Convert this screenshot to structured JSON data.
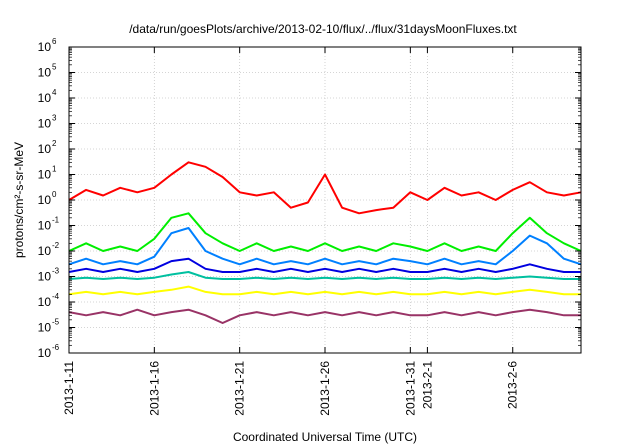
{
  "chart_data": {
    "type": "line",
    "title": "/data/run/goesPlots/archive/2013-02-10/flux/../flux/31daysMoonFluxes.txt",
    "xlabel": "Coordinated Universal Time (UTC)",
    "ylabel": "protons/cm²-s-sr-MeV",
    "yscale": "log",
    "ylim": [
      1e-06,
      1000000.0
    ],
    "xlim": [
      "2013-01-11",
      "2013-02-10"
    ],
    "grid": true,
    "y_ticks": [
      {
        "value": 1e-06,
        "base": "10",
        "exp": "-6"
      },
      {
        "value": 1e-05,
        "base": "10",
        "exp": "-5"
      },
      {
        "value": 0.0001,
        "base": "10",
        "exp": "-4"
      },
      {
        "value": 0.001,
        "base": "10",
        "exp": "-3"
      },
      {
        "value": 0.01,
        "base": "10",
        "exp": "-2"
      },
      {
        "value": 0.1,
        "base": "10",
        "exp": "-1"
      },
      {
        "value": 1,
        "base": "10",
        "exp": "0"
      },
      {
        "value": 10.0,
        "base": "10",
        "exp": "1"
      },
      {
        "value": 100.0,
        "base": "10",
        "exp": "2"
      },
      {
        "value": 1000.0,
        "base": "10",
        "exp": "3"
      },
      {
        "value": 10000.0,
        "base": "10",
        "exp": "4"
      },
      {
        "value": 100000.0,
        "base": "10",
        "exp": "5"
      },
      {
        "value": 1000000.0,
        "base": "10",
        "exp": "6"
      }
    ],
    "x_ticks": [
      {
        "date": "2013-01-11",
        "label": "2013-1-11"
      },
      {
        "date": "2013-01-16",
        "label": "2013-1-16"
      },
      {
        "date": "2013-01-21",
        "label": "2013-1-21"
      },
      {
        "date": "2013-01-26",
        "label": "2013-1-26"
      },
      {
        "date": "2013-01-31",
        "label": "2013-1-31"
      },
      {
        "date": "2013-02-01",
        "label": "2013-2-1"
      },
      {
        "date": "2013-02-06",
        "label": "2013-2-6"
      }
    ],
    "series": [
      {
        "color": "#ff0000",
        "x": [
          "2013-01-11",
          "2013-01-12",
          "2013-01-13",
          "2013-01-14",
          "2013-01-15",
          "2013-01-16",
          "2013-01-17",
          "2013-01-18",
          "2013-01-19",
          "2013-01-20",
          "2013-01-21",
          "2013-01-22",
          "2013-01-23",
          "2013-01-24",
          "2013-01-25",
          "2013-01-26",
          "2013-01-27",
          "2013-01-28",
          "2013-01-29",
          "2013-01-30",
          "2013-01-31",
          "2013-02-01",
          "2013-02-02",
          "2013-02-03",
          "2013-02-04",
          "2013-02-05",
          "2013-02-06",
          "2013-02-07",
          "2013-02-08",
          "2013-02-09",
          "2013-02-10"
        ],
        "values": [
          1.0,
          2.5,
          1.5,
          3.0,
          2.0,
          3.0,
          10,
          30,
          20,
          8,
          2,
          1.5,
          2,
          0.5,
          0.8,
          10,
          0.5,
          0.3,
          0.4,
          0.5,
          2,
          1.0,
          3.0,
          1.5,
          2.0,
          1.0,
          2.5,
          5.0,
          2.0,
          1.5,
          2.0
        ]
      },
      {
        "color": "#00ee00",
        "x": [
          "2013-01-11",
          "2013-01-12",
          "2013-01-13",
          "2013-01-14",
          "2013-01-15",
          "2013-01-16",
          "2013-01-17",
          "2013-01-18",
          "2013-01-19",
          "2013-01-20",
          "2013-01-21",
          "2013-01-22",
          "2013-01-23",
          "2013-01-24",
          "2013-01-25",
          "2013-01-26",
          "2013-01-27",
          "2013-01-28",
          "2013-01-29",
          "2013-01-30",
          "2013-01-31",
          "2013-02-01",
          "2013-02-02",
          "2013-02-03",
          "2013-02-04",
          "2013-02-05",
          "2013-02-06",
          "2013-02-07",
          "2013-02-08",
          "2013-02-09",
          "2013-02-10"
        ],
        "values": [
          0.01,
          0.02,
          0.01,
          0.015,
          0.01,
          0.03,
          0.2,
          0.3,
          0.05,
          0.02,
          0.01,
          0.02,
          0.01,
          0.015,
          0.01,
          0.02,
          0.01,
          0.015,
          0.01,
          0.02,
          0.015,
          0.01,
          0.02,
          0.01,
          0.015,
          0.01,
          0.05,
          0.2,
          0.05,
          0.02,
          0.01
        ]
      },
      {
        "color": "#0080ff",
        "x": [
          "2013-01-11",
          "2013-01-12",
          "2013-01-13",
          "2013-01-14",
          "2013-01-15",
          "2013-01-16",
          "2013-01-17",
          "2013-01-18",
          "2013-01-19",
          "2013-01-20",
          "2013-01-21",
          "2013-01-22",
          "2013-01-23",
          "2013-01-24",
          "2013-01-25",
          "2013-01-26",
          "2013-01-27",
          "2013-01-28",
          "2013-01-29",
          "2013-01-30",
          "2013-01-31",
          "2013-02-01",
          "2013-02-02",
          "2013-02-03",
          "2013-02-04",
          "2013-02-05",
          "2013-02-06",
          "2013-02-07",
          "2013-02-08",
          "2013-02-09",
          "2013-02-10"
        ],
        "values": [
          0.003,
          0.005,
          0.003,
          0.004,
          0.003,
          0.006,
          0.05,
          0.08,
          0.01,
          0.005,
          0.003,
          0.005,
          0.003,
          0.004,
          0.003,
          0.005,
          0.003,
          0.004,
          0.003,
          0.005,
          0.004,
          0.003,
          0.005,
          0.003,
          0.004,
          0.003,
          0.01,
          0.04,
          0.02,
          0.005,
          0.003
        ]
      },
      {
        "color": "#0000e0",
        "x": [
          "2013-01-11",
          "2013-01-12",
          "2013-01-13",
          "2013-01-14",
          "2013-01-15",
          "2013-01-16",
          "2013-01-17",
          "2013-01-18",
          "2013-01-19",
          "2013-01-20",
          "2013-01-21",
          "2013-01-22",
          "2013-01-23",
          "2013-01-24",
          "2013-01-25",
          "2013-01-26",
          "2013-01-27",
          "2013-01-28",
          "2013-01-29",
          "2013-01-30",
          "2013-01-31",
          "2013-02-01",
          "2013-02-02",
          "2013-02-03",
          "2013-02-04",
          "2013-02-05",
          "2013-02-06",
          "2013-02-07",
          "2013-02-08",
          "2013-02-09",
          "2013-02-10"
        ],
        "values": [
          0.0015,
          0.002,
          0.0015,
          0.002,
          0.0015,
          0.002,
          0.004,
          0.005,
          0.002,
          0.0015,
          0.0015,
          0.002,
          0.0015,
          0.002,
          0.0015,
          0.002,
          0.0015,
          0.002,
          0.0015,
          0.002,
          0.0015,
          0.0015,
          0.002,
          0.0015,
          0.002,
          0.0015,
          0.002,
          0.003,
          0.002,
          0.0015,
          0.0015
        ]
      },
      {
        "color": "#00c0a0",
        "x": [
          "2013-01-11",
          "2013-01-12",
          "2013-01-13",
          "2013-01-14",
          "2013-01-15",
          "2013-01-16",
          "2013-01-17",
          "2013-01-18",
          "2013-01-19",
          "2013-01-20",
          "2013-01-21",
          "2013-01-22",
          "2013-01-23",
          "2013-01-24",
          "2013-01-25",
          "2013-01-26",
          "2013-01-27",
          "2013-01-28",
          "2013-01-29",
          "2013-01-30",
          "2013-01-31",
          "2013-02-01",
          "2013-02-02",
          "2013-02-03",
          "2013-02-04",
          "2013-02-05",
          "2013-02-06",
          "2013-02-07",
          "2013-02-08",
          "2013-02-09",
          "2013-02-10"
        ],
        "values": [
          0.0008,
          0.0009,
          0.0008,
          0.0009,
          0.0008,
          0.0009,
          0.0012,
          0.0015,
          0.0009,
          0.0008,
          0.0008,
          0.0009,
          0.0008,
          0.0009,
          0.0008,
          0.0009,
          0.0008,
          0.0009,
          0.0008,
          0.0009,
          0.0008,
          0.0008,
          0.0009,
          0.0008,
          0.0009,
          0.0008,
          0.0009,
          0.001,
          0.0009,
          0.0008,
          0.0008
        ]
      },
      {
        "color": "#ffff00",
        "x": [
          "2013-01-11",
          "2013-01-12",
          "2013-01-13",
          "2013-01-14",
          "2013-01-15",
          "2013-01-16",
          "2013-01-17",
          "2013-01-18",
          "2013-01-19",
          "2013-01-20",
          "2013-01-21",
          "2013-01-22",
          "2013-01-23",
          "2013-01-24",
          "2013-01-25",
          "2013-01-26",
          "2013-01-27",
          "2013-01-28",
          "2013-01-29",
          "2013-01-30",
          "2013-01-31",
          "2013-02-01",
          "2013-02-02",
          "2013-02-03",
          "2013-02-04",
          "2013-02-05",
          "2013-02-06",
          "2013-02-07",
          "2013-02-08",
          "2013-02-09",
          "2013-02-10"
        ],
        "values": [
          0.0002,
          0.00025,
          0.0002,
          0.00025,
          0.0002,
          0.00025,
          0.0003,
          0.0004,
          0.00025,
          0.0002,
          0.0002,
          0.00025,
          0.0002,
          0.00025,
          0.0002,
          0.00025,
          0.0002,
          0.00025,
          0.0002,
          0.00025,
          0.0002,
          0.0002,
          0.00025,
          0.0002,
          0.00025,
          0.0002,
          0.00025,
          0.0003,
          0.00025,
          0.0002,
          0.0002
        ]
      },
      {
        "color": "#993366",
        "x": [
          "2013-01-11",
          "2013-01-12",
          "2013-01-13",
          "2013-01-14",
          "2013-01-15",
          "2013-01-16",
          "2013-01-17",
          "2013-01-18",
          "2013-01-19",
          "2013-01-20",
          "2013-01-21",
          "2013-01-22",
          "2013-01-23",
          "2013-01-24",
          "2013-01-25",
          "2013-01-26",
          "2013-01-27",
          "2013-01-28",
          "2013-01-29",
          "2013-01-30",
          "2013-01-31",
          "2013-02-01",
          "2013-02-02",
          "2013-02-03",
          "2013-02-04",
          "2013-02-05",
          "2013-02-06",
          "2013-02-07",
          "2013-02-08",
          "2013-02-09",
          "2013-02-10"
        ],
        "values": [
          4e-05,
          3e-05,
          4e-05,
          3e-05,
          5e-05,
          3e-05,
          4e-05,
          5e-05,
          3e-05,
          1.5e-05,
          3e-05,
          4e-05,
          3e-05,
          4e-05,
          3e-05,
          4e-05,
          3e-05,
          4e-05,
          3e-05,
          4e-05,
          3e-05,
          3e-05,
          4e-05,
          3e-05,
          4e-05,
          3e-05,
          4e-05,
          5e-05,
          4e-05,
          3e-05,
          3e-05
        ]
      }
    ]
  }
}
